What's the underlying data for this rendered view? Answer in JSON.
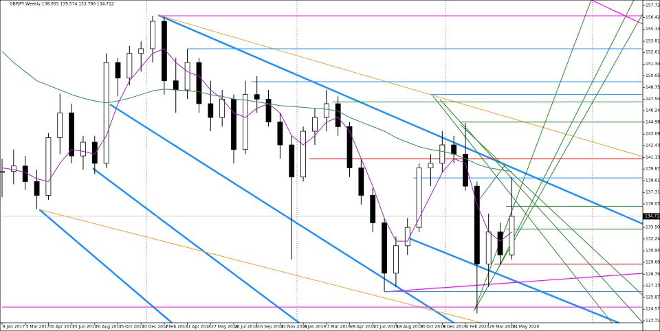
{
  "chart_data": {
    "type": "candlestick",
    "title": "GBPJPY,Weekly  138.955 139.574 133.790 134.712",
    "categories": [
      "8 Jan 2017",
      null,
      "5 Mar 2017",
      null,
      "30 Apr 2017",
      null,
      "25 Jun 2017",
      null,
      "20 Aug 2017",
      null,
      "15 Oct 2017",
      null,
      "10 Dec 2017",
      null,
      "4 Feb 2018",
      null,
      "1 Apr 2018",
      null,
      "27 May 2018",
      null,
      "22 Jul 2018",
      null,
      "16 Sep 2018",
      null,
      "11 Nov 2018",
      null,
      "6 Jan 2019",
      null,
      "3 Mar 2019",
      null,
      "28 Apr 2019",
      null,
      "23 Jun 2019",
      null,
      "18 Aug 2019",
      null,
      "13 Oct 2019",
      null,
      "8 Dec 2019",
      null,
      "2 Feb 2020",
      null,
      "29 Mar 2020",
      null,
      "24 May 2020"
    ],
    "open": [
      139.5,
      139.6,
      140.2,
      138.5,
      137.0,
      143.3,
      146.0,
      141.3,
      142.8,
      140.5,
      151.5,
      149.8,
      152.5,
      153.0,
      156.0,
      149.5,
      148.5,
      151.5,
      147.0,
      145.5,
      147.5,
      142.0,
      148.0,
      147.5,
      145.0,
      142.5,
      139.0,
      144.0,
      145.5,
      147.0,
      144.5,
      140.0,
      137.0,
      134.0,
      128.5,
      131.5,
      133.5,
      140.0,
      140.5,
      142.5,
      141.5,
      138.0,
      129.5,
      133.0,
      130.5
    ],
    "high": [
      141.0,
      142.0,
      141.3,
      139.8,
      143.8,
      148.1,
      147.0,
      143.5,
      143.5,
      152.5,
      152.0,
      153.3,
      153.8,
      156.6,
      156.5,
      152.0,
      153.0,
      152.0,
      149.5,
      148.5,
      148.0,
      149.5,
      150.0,
      148.5,
      146.0,
      143.5,
      144.5,
      146.5,
      148.5,
      147.8,
      145.0,
      141.0,
      137.8,
      134.5,
      132.5,
      134.5,
      140.5,
      141.5,
      144.0,
      143.5,
      144.9,
      138.5,
      135.0,
      134.0,
      139.0
    ],
    "low": [
      136.8,
      138.2,
      137.6,
      135.5,
      136.5,
      141.5,
      140.5,
      139.8,
      139.3,
      140.0,
      147.8,
      149.0,
      150.5,
      151.5,
      148.0,
      146.0,
      147.5,
      146.0,
      144.0,
      144.5,
      140.5,
      141.5,
      146.0,
      144.5,
      141.0,
      130.0,
      138.5,
      142.5,
      144.0,
      143.5,
      139.0,
      136.0,
      133.0,
      126.5,
      127.0,
      130.5,
      133.0,
      138.0,
      139.5,
      140.5,
      137.5,
      124.1,
      127.0,
      129.5,
      130.0
    ],
    "close": [
      139.6,
      140.2,
      138.5,
      137.0,
      143.3,
      146.0,
      141.3,
      142.8,
      140.5,
      151.5,
      149.8,
      152.5,
      153.0,
      156.0,
      149.5,
      148.5,
      151.5,
      147.0,
      145.5,
      147.5,
      142.0,
      148.0,
      147.5,
      145.0,
      142.5,
      139.0,
      144.0,
      145.5,
      147.0,
      144.5,
      140.0,
      137.0,
      134.0,
      128.5,
      131.5,
      133.5,
      140.0,
      140.5,
      142.5,
      141.5,
      138.0,
      129.5,
      133.0,
      130.5,
      134.712
    ],
    "series": [
      {
        "color": "#2e8b57",
        "values": [
          152.7,
          151.5,
          150.5,
          149.5,
          149.0,
          148.5,
          148.0,
          147.6,
          147.3,
          147.1,
          147.3,
          147.6,
          148.0,
          148.4,
          148.6,
          148.5,
          148.4,
          148.3,
          148.0,
          147.8,
          147.5,
          147.4,
          147.2,
          147.0,
          146.8,
          146.7,
          146.6,
          146.5,
          146.4,
          146.2,
          145.5,
          145.0,
          144.5,
          144.0,
          143.3,
          142.8,
          142.3,
          142.0,
          141.8,
          141.5,
          141.0,
          140.4,
          140.0,
          139.8,
          139.6
        ]
      },
      {
        "color": "#a020c0",
        "values": [
          140.0,
          139.8,
          139.5,
          138.8,
          138.5,
          140.5,
          142.0,
          141.8,
          141.5,
          143.5,
          147.0,
          149.5,
          151.0,
          152.5,
          153.0,
          151.5,
          150.5,
          150.0,
          148.5,
          147.5,
          146.0,
          145.5,
          146.5,
          147.0,
          146.0,
          143.5,
          142.5,
          143.5,
          145.0,
          145.5,
          144.0,
          141.0,
          138.0,
          134.5,
          132.0,
          132.0,
          134.5,
          137.0,
          139.5,
          141.0,
          140.5,
          136.0,
          133.0,
          132.0,
          133.0
        ]
      }
    ],
    "levels": [
      {
        "value": 156.6,
        "from": 13.5,
        "color": "#ff00ff"
      },
      {
        "value": 153.0,
        "from": 16,
        "color": "#1e90ff"
      },
      {
        "value": 149.4,
        "from": 21.5,
        "color": "#1e90ff"
      },
      {
        "value": 148.0,
        "from": 37,
        "color": "#1e90ff"
      },
      {
        "value": 147.2,
        "from": 28.5,
        "color": "#228b22"
      },
      {
        "value": 145.0,
        "from": 39.5,
        "color": "#228b22"
      },
      {
        "value": 141.0,
        "from": 26.5,
        "color": "#e60000"
      },
      {
        "value": 138.9,
        "from": 35.5,
        "color": "#1e90ff"
      },
      {
        "value": 135.8,
        "from": 43.5,
        "color": "#228b22"
      },
      {
        "value": 133.3,
        "from": 43.5,
        "color": "#228b22"
      },
      {
        "value": 129.5,
        "from": 42.5,
        "color": "#e60000"
      },
      {
        "value": 126.5,
        "from": 33,
        "color": "#1e90ff"
      },
      {
        "value": 124.8,
        "from": 0,
        "color": "#ff00ff"
      }
    ],
    "last_price": 134.712,
    "ylim": [
      123.09,
      158.32
    ],
    "yticks": [
      {
        "value": 157.72,
        "label": "157.720"
      },
      {
        "value": 156.425,
        "label": "156.425"
      },
      {
        "value": 155.13,
        "label": "155.130"
      },
      {
        "value": 153.815,
        "label": "153.815"
      },
      {
        "value": 152.61,
        "label": "152.610"
      },
      {
        "value": 151.305,
        "label": "151.305"
      },
      {
        "value": 150.055,
        "label": "150.055"
      },
      {
        "value": 148.75,
        "label": "148.750"
      },
      {
        "value": 147.5,
        "label": "147.500"
      },
      {
        "value": 146.24,
        "label": "146.240"
      },
      {
        "value": 144.98,
        "label": "144.980"
      },
      {
        "value": 143.685,
        "label": "143.685"
      },
      {
        "value": 142.43,
        "label": "142.430"
      },
      {
        "value": 141.13,
        "label": "141.130"
      },
      {
        "value": 139.87,
        "label": "139.870"
      },
      {
        "value": 138.61,
        "label": "138.610"
      },
      {
        "value": 137.315,
        "label": "137.315"
      },
      {
        "value": 136.055,
        "label": "136.055"
      },
      {
        "value": 133.5,
        "label": "133.500"
      },
      {
        "value": 132.24,
        "label": "132.240"
      },
      {
        "value": 130.945,
        "label": "130.945"
      },
      {
        "value": 129.685,
        "label": "129.685"
      },
      {
        "value": 128.39,
        "label": "128.390"
      },
      {
        "value": 127.13,
        "label": "127.130"
      },
      {
        "value": 125.87,
        "label": "125.870"
      },
      {
        "value": 124.575,
        "label": "124.575"
      },
      {
        "value": 123.315,
        "label": "123.315"
      }
    ]
  }
}
